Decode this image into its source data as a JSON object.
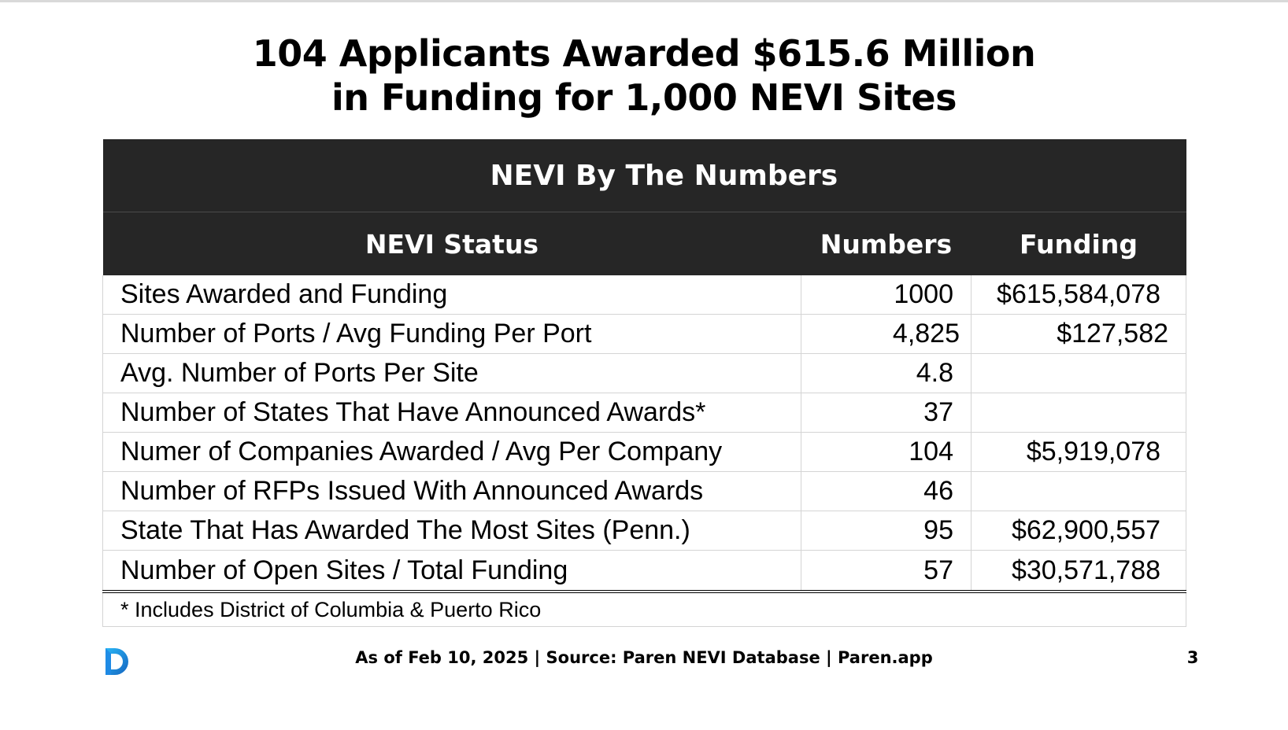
{
  "slide": {
    "title_line1": "104 Applicants Awarded $615.6 Million",
    "title_line2": "in Funding for 1,000 NEVI Sites",
    "footer_text": "As of Feb 10, 2025 | Source: Paren NEVI Database | Paren.app",
    "page_number": "3",
    "logo_icon": "paren-logo-icon",
    "colors": {
      "header_bg": "#262626",
      "header_text": "#ffffff",
      "grid": "#d4d4d4",
      "logo_blue": "#1e88e5",
      "logo_cyan": "#29b6f6"
    }
  },
  "table": {
    "banner": "NEVI By The Numbers",
    "headers": {
      "status": "NEVI Status",
      "numbers": "Numbers",
      "funding": "Funding"
    },
    "rows": [
      {
        "status": "Sites Awarded and Funding",
        "number": "1000",
        "funding": "$615,584,078"
      },
      {
        "status": "Number of Ports / Avg Funding Per Port",
        "number": "4,825",
        "funding": "$127,582"
      },
      {
        "status": "Avg. Number of Ports Per Site",
        "number": "4.8",
        "funding": ""
      },
      {
        "status": "Number of States That Have Announced Awards*",
        "number": "37",
        "funding": ""
      },
      {
        "status": "Numer of Companies Awarded / Avg Per Company",
        "number": "104",
        "funding": "$5,919,078"
      },
      {
        "status": "Number of RFPs Issued With Announced Awards",
        "number": "46",
        "funding": ""
      },
      {
        "status": "State That Has Awarded The Most Sites (Penn.)",
        "number": "95",
        "funding": "$62,900,557"
      },
      {
        "status": "Number of Open Sites / Total Funding",
        "number": "57",
        "funding": "$30,571,788"
      }
    ],
    "footnote": "* Includes District of Columbia & Puerto Rico"
  }
}
